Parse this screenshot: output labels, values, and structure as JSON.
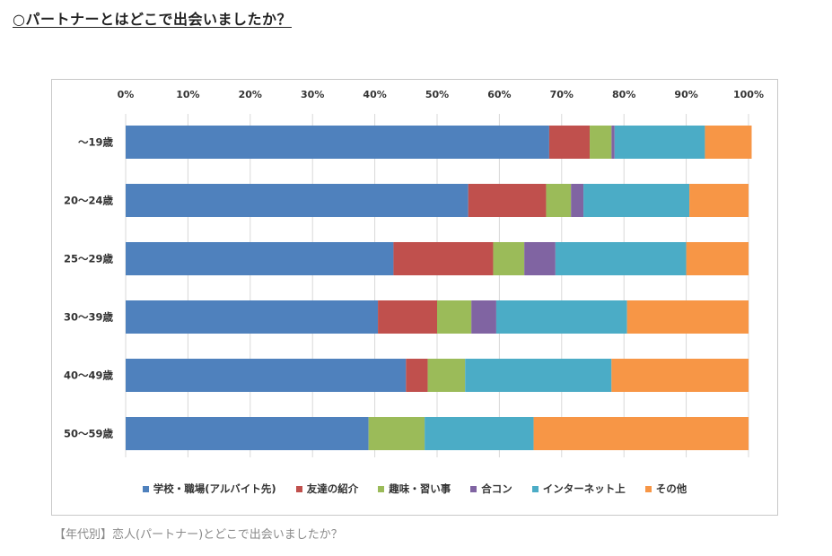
{
  "heading": "○パートナーとはどこで出会いましたか？",
  "caption": "【年代別】恋人(パートナー)とどこで出会いましたか？",
  "chart_data": {
    "type": "bar",
    "orientation": "horizontal",
    "stacked": true,
    "xlim": [
      0,
      100
    ],
    "x_ticks": [
      "0%",
      "10%",
      "20%",
      "30%",
      "40%",
      "50%",
      "60%",
      "70%",
      "80%",
      "90%",
      "100%"
    ],
    "categories": [
      "～19歳",
      "20～24歳",
      "25～29歳",
      "30～39歳",
      "40～49歳",
      "50～59歳"
    ],
    "series": [
      {
        "name": "学校・職場(アルバイト先)",
        "color": "#4f81bd",
        "values": [
          68,
          55,
          43,
          40.5,
          45,
          39
        ]
      },
      {
        "name": "友達の紹介",
        "color": "#c0504d",
        "values": [
          6.5,
          12.5,
          16,
          9.5,
          3.5,
          0
        ]
      },
      {
        "name": "趣味・習い事",
        "color": "#9bbb59",
        "values": [
          3.5,
          4,
          5,
          5.5,
          6,
          9
        ]
      },
      {
        "name": "合コン",
        "color": "#8064a2",
        "values": [
          0.5,
          2,
          5,
          4,
          0,
          0
        ]
      },
      {
        "name": "インターネット上",
        "color": "#4bacc6",
        "values": [
          14.5,
          17,
          21,
          21,
          23.5,
          17.5
        ]
      },
      {
        "name": "その他",
        "color": "#f79646",
        "values": [
          7.5,
          9.5,
          10,
          19.5,
          22,
          34.5
        ]
      }
    ],
    "legend_position": "bottom",
    "grid": true
  }
}
